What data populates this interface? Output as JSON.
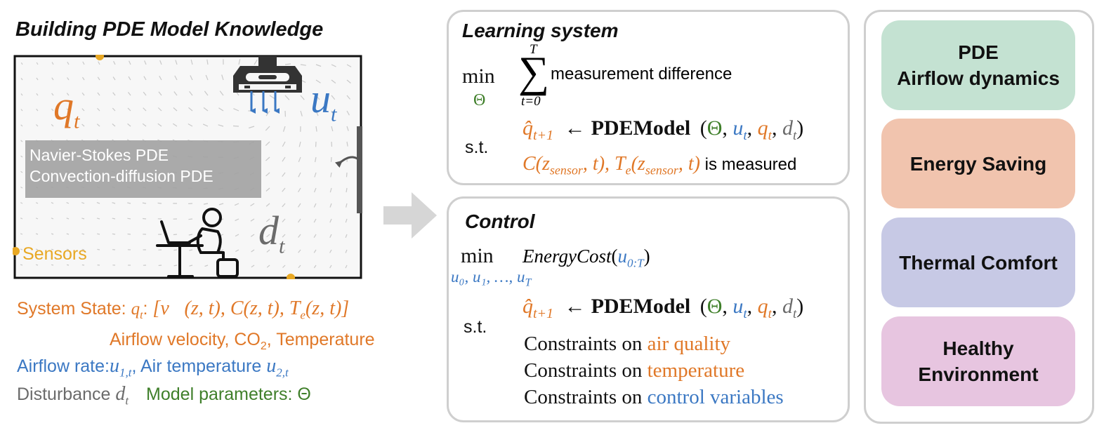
{
  "colors": {
    "orange": "#e07828",
    "blue": "#3b78c3",
    "green": "#3f7f2a",
    "gray": "#6b6b6b",
    "sensor_yellow": "#e8a824",
    "goal_pde": "#c4e2d2",
    "goal_energy": "#f1c4ae",
    "goal_thermal": "#c7c9e5",
    "goal_health": "#e7c5e0",
    "panel_border": "#cfcfcf"
  },
  "left": {
    "title": "Building PDE Model Knowledge",
    "room": {
      "q_label": "q",
      "q_sub": "t",
      "u_label": "u",
      "u_sub": "t",
      "d_label": "d",
      "d_sub": "t",
      "pde_line1": "Navier-Stokes PDE",
      "pde_line2": "Convection-diffusion PDE",
      "sensors": "Sensors"
    },
    "legend": {
      "state_prefix": "System State: ",
      "state_q": "q",
      "state_q_sub": "t",
      "state_colon": ": ",
      "state_vec": "[v⃗(z, t), C(z, t), T",
      "state_te_sub": "e",
      "state_end": "(z, t)]",
      "state_desc_a": "Airflow velocity, CO",
      "state_desc_sub": "2",
      "state_desc_b": ", Temperature",
      "airflow_rate": "Airflow rate:",
      "u1": "u",
      "u1_sub": "1,t",
      "air_temp": ",  Air temperature ",
      "u2": "u",
      "u2_sub": "2,t",
      "disturbance": "Disturbance ",
      "d": "d",
      "d_sub": "t",
      "model_params": "Model parameters: Θ"
    }
  },
  "learning": {
    "title": "Learning system",
    "min": "min",
    "min_sub": "Θ",
    "sum_top": "T",
    "sum_sym": "∑",
    "sum_bottom": "t=0",
    "objective": "measurement difference",
    "st": "s.t.",
    "q_hat": "q̂",
    "q_hat_sub": "t+1",
    "arrow": "←",
    "model": "PDEModel",
    "arg_open": "(",
    "theta": "Θ",
    "comma": ", ",
    "u": "u",
    "u_sub": "t",
    "q": "q",
    "q_sub": "t",
    "d": "d",
    "d_sub": "t",
    "arg_close": ")",
    "meas_c": "C(z",
    "meas_sensor1": "sensor",
    "meas_mid": ", t), T",
    "meas_e": "e",
    "meas_z": "(z",
    "meas_sensor2": "sensor",
    "meas_end": ", t)",
    "measured": " is measured"
  },
  "control": {
    "title": "Control",
    "min": "min",
    "min_sub": "u",
    "min_sub_text": "u₀, u₁, …, u",
    "min_sub_T": "T",
    "cost": "EnergyCost",
    "cost_open": "(",
    "cost_u": "u",
    "cost_sub": "0:T",
    "cost_close": ")",
    "st": "s.t.",
    "c1_prefix": "Constraints on ",
    "c1_target": "air quality",
    "c2_prefix": "Constraints on ",
    "c2_target": "temperature",
    "c3_prefix": "Constraints on ",
    "c3_target": "control variables"
  },
  "goals": [
    {
      "line1": "PDE",
      "line2": "Airflow dynamics"
    },
    {
      "line1": "Energy Saving",
      "line2": ""
    },
    {
      "line1": "Thermal Comfort",
      "line2": ""
    },
    {
      "line1": "Healthy",
      "line2": "Environment"
    }
  ]
}
